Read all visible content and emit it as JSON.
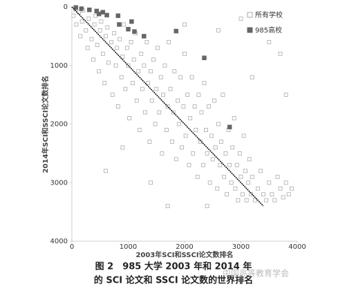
{
  "chart_data": {
    "type": "scatter",
    "caption": [
      "图 2　985 大学 2003 年和 2014 年",
      "的 SCI 论文和 SSCI 论文数的世界排名"
    ],
    "watermark": "中国高等教育学会",
    "x_label": "2003年SCI和SSCI论文数排名",
    "y_label": "2014年SCI和SSCI论文数排名",
    "xlim": [
      0,
      4000
    ],
    "xticks": [
      0,
      1000,
      2000,
      3000,
      4000
    ],
    "ylim": [
      0,
      4000
    ],
    "yticks": [
      0,
      1000,
      2000,
      3000,
      4000
    ],
    "y_inverted": true,
    "grid": false,
    "legend": "upper right",
    "series": [
      {
        "name": "所有学校",
        "color": "#aaaaaa",
        "marker": "open-square",
        "x": [
          30,
          60,
          80,
          120,
          150,
          180,
          200,
          250,
          280,
          300,
          350,
          380,
          400,
          420,
          450,
          480,
          500,
          520,
          550,
          580,
          600,
          630,
          650,
          700,
          720,
          750,
          780,
          800,
          820,
          850,
          880,
          900,
          920,
          950,
          980,
          1000,
          1020,
          1050,
          1080,
          1100,
          1130,
          1150,
          1180,
          1200,
          1230,
          1250,
          1280,
          1300,
          1330,
          1350,
          1380,
          1400,
          1420,
          1450,
          1480,
          1500,
          1520,
          1550,
          1580,
          1600,
          1620,
          1650,
          1680,
          1700,
          1720,
          1750,
          1780,
          1800,
          1820,
          1850,
          1880,
          1900,
          1930,
          1950,
          1980,
          2000,
          2020,
          2050,
          2080,
          2100,
          2130,
          2150,
          2180,
          2200,
          2230,
          2250,
          2280,
          2300,
          2330,
          2350,
          2380,
          2400,
          2430,
          2450,
          2480,
          2500,
          2530,
          2550,
          2580,
          2600,
          2630,
          2650,
          2680,
          2700,
          2730,
          2750,
          2780,
          2800,
          2830,
          2850,
          2880,
          2900,
          2930,
          2950,
          2980,
          3000,
          3030,
          3050,
          3080,
          3100,
          3130,
          3150,
          3180,
          3200,
          3250,
          3300,
          3350,
          3400,
          3450,
          3500,
          3550,
          3600,
          3650,
          3700,
          3750,
          3800,
          3850,
          3900,
          3000,
          2600,
          3500,
          3700,
          3200,
          2000,
          1400,
          1700,
          600,
          3800,
          2400,
          900
        ],
        "values": [
          150,
          40,
          300,
          90,
          500,
          250,
          60,
          400,
          700,
          200,
          550,
          900,
          300,
          150,
          650,
          1100,
          400,
          250,
          800,
          1300,
          500,
          350,
          950,
          600,
          1500,
          450,
          1000,
          700,
          1700,
          550,
          1200,
          850,
          300,
          1400,
          700,
          1000,
          1900,
          600,
          1300,
          900,
          450,
          1600,
          1100,
          2100,
          800,
          1400,
          1000,
          1800,
          600,
          1300,
          2300,
          1100,
          1600,
          900,
          2000,
          1400,
          700,
          1800,
          1200,
          2500,
          1500,
          1000,
          2100,
          1700,
          600,
          1400,
          2300,
          1800,
          1100,
          2600,
          1600,
          2000,
          1200,
          2400,
          1700,
          800,
          2200,
          1500,
          2700,
          1900,
          1200,
          2500,
          1700,
          2100,
          2900,
          1500,
          2300,
          1800,
          2700,
          1300,
          2100,
          2500,
          1700,
          3000,
          2200,
          2600,
          1600,
          2400,
          3100,
          2000,
          2700,
          2300,
          1500,
          2900,
          2500,
          3200,
          2100,
          2700,
          3000,
          2400,
          1900,
          3100,
          2700,
          3300,
          2500,
          2900,
          3200,
          2200,
          2800,
          3300,
          3000,
          2600,
          3200,
          2900,
          3300,
          3100,
          2800,
          3200,
          3300,
          3000,
          3200,
          3300,
          2900,
          3100,
          3250,
          3000,
          3200,
          3100,
          200,
          400,
          600,
          800,
          1200,
          300,
          3000,
          3400,
          2800,
          1500,
          3400,
          2400
        ]
      },
      {
        "name": "985高校",
        "color": "#666666",
        "marker": "filled-square",
        "x": [
          70,
          170,
          310,
          440,
          550,
          620,
          480,
          840,
          1000,
          1110,
          1280,
          1850,
          2350,
          2800,
          820,
          1060
        ],
        "values": [
          10,
          30,
          50,
          70,
          90,
          140,
          120,
          300,
          380,
          420,
          500,
          413,
          870,
          2050,
          150,
          250
        ]
      },
      {
        "type": "line",
        "color": "#000000",
        "x": [
          0,
          3400
        ],
        "values": [
          0,
          3400
        ]
      }
    ]
  }
}
